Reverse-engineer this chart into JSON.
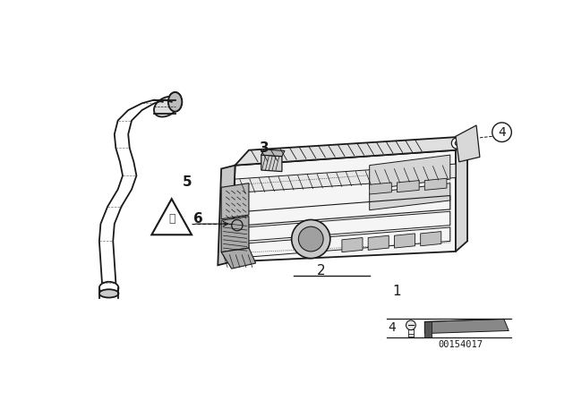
{
  "bg_color": "#ffffff",
  "fig_width": 6.4,
  "fig_height": 4.48,
  "dpi": 100,
  "diagram_id": "00154017"
}
